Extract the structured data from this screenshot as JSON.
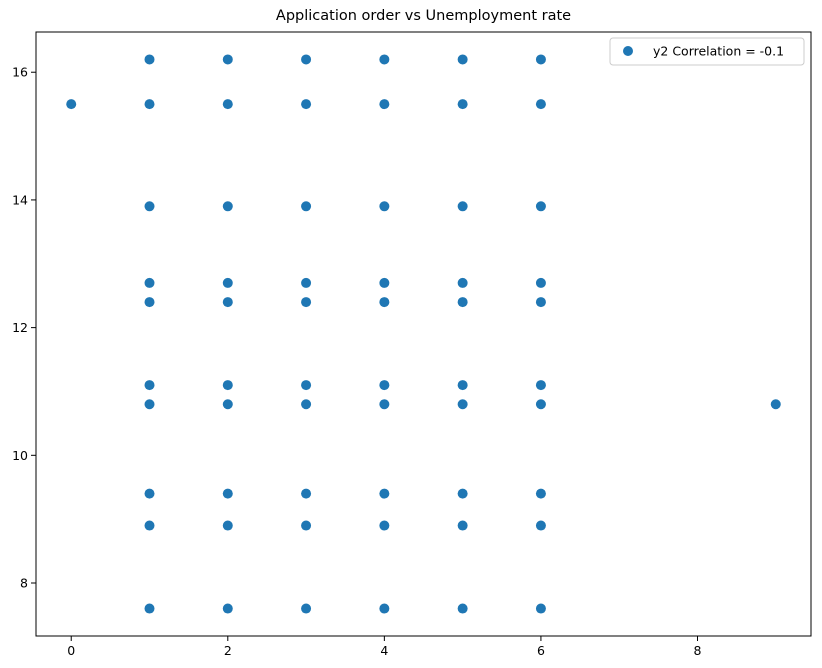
{
  "chart_data": {
    "type": "scatter",
    "title": "Application order vs Unemployment rate",
    "xlabel": "",
    "ylabel": "",
    "xlim": [
      -0.45,
      9.45
    ],
    "ylim": [
      7.17,
      16.63
    ],
    "xticks": [
      0,
      2,
      4,
      6,
      8
    ],
    "yticks": [
      8,
      10,
      12,
      14,
      16
    ],
    "grid": false,
    "legend_position": "top-right",
    "series": [
      {
        "name": "y2 Correlation = -0.1",
        "color": "#1f77b4",
        "marker": "circle",
        "points": [
          {
            "x": 0,
            "y": 15.5
          },
          {
            "x": 1,
            "y": 16.2
          },
          {
            "x": 1,
            "y": 15.5
          },
          {
            "x": 1,
            "y": 13.9
          },
          {
            "x": 1,
            "y": 12.7
          },
          {
            "x": 1,
            "y": 12.4
          },
          {
            "x": 1,
            "y": 11.1
          },
          {
            "x": 1,
            "y": 10.8
          },
          {
            "x": 1,
            "y": 9.4
          },
          {
            "x": 1,
            "y": 8.9
          },
          {
            "x": 1,
            "y": 7.6
          },
          {
            "x": 2,
            "y": 16.2
          },
          {
            "x": 2,
            "y": 15.5
          },
          {
            "x": 2,
            "y": 13.9
          },
          {
            "x": 2,
            "y": 12.7
          },
          {
            "x": 2,
            "y": 12.4
          },
          {
            "x": 2,
            "y": 11.1
          },
          {
            "x": 2,
            "y": 10.8
          },
          {
            "x": 2,
            "y": 9.4
          },
          {
            "x": 2,
            "y": 8.9
          },
          {
            "x": 2,
            "y": 7.6
          },
          {
            "x": 3,
            "y": 16.2
          },
          {
            "x": 3,
            "y": 15.5
          },
          {
            "x": 3,
            "y": 13.9
          },
          {
            "x": 3,
            "y": 12.7
          },
          {
            "x": 3,
            "y": 12.4
          },
          {
            "x": 3,
            "y": 11.1
          },
          {
            "x": 3,
            "y": 10.8
          },
          {
            "x": 3,
            "y": 9.4
          },
          {
            "x": 3,
            "y": 8.9
          },
          {
            "x": 3,
            "y": 7.6
          },
          {
            "x": 4,
            "y": 16.2
          },
          {
            "x": 4,
            "y": 15.5
          },
          {
            "x": 4,
            "y": 13.9
          },
          {
            "x": 4,
            "y": 12.7
          },
          {
            "x": 4,
            "y": 12.4
          },
          {
            "x": 4,
            "y": 11.1
          },
          {
            "x": 4,
            "y": 10.8
          },
          {
            "x": 4,
            "y": 9.4
          },
          {
            "x": 4,
            "y": 8.9
          },
          {
            "x": 4,
            "y": 7.6
          },
          {
            "x": 5,
            "y": 16.2
          },
          {
            "x": 5,
            "y": 15.5
          },
          {
            "x": 5,
            "y": 13.9
          },
          {
            "x": 5,
            "y": 12.7
          },
          {
            "x": 5,
            "y": 12.4
          },
          {
            "x": 5,
            "y": 11.1
          },
          {
            "x": 5,
            "y": 10.8
          },
          {
            "x": 5,
            "y": 9.4
          },
          {
            "x": 5,
            "y": 8.9
          },
          {
            "x": 5,
            "y": 7.6
          },
          {
            "x": 6,
            "y": 16.2
          },
          {
            "x": 6,
            "y": 15.5
          },
          {
            "x": 6,
            "y": 13.9
          },
          {
            "x": 6,
            "y": 12.7
          },
          {
            "x": 6,
            "y": 12.4
          },
          {
            "x": 6,
            "y": 11.1
          },
          {
            "x": 6,
            "y": 10.8
          },
          {
            "x": 6,
            "y": 9.4
          },
          {
            "x": 6,
            "y": 8.9
          },
          {
            "x": 6,
            "y": 7.6
          },
          {
            "x": 9,
            "y": 10.8
          }
        ]
      }
    ]
  }
}
